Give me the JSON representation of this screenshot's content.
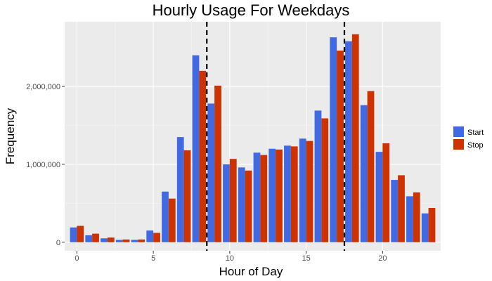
{
  "chart_data": {
    "type": "bar",
    "title": "Hourly Usage For Weekdays",
    "xlabel": "Hour of Day",
    "ylabel": "Frequency",
    "x": [
      0,
      1,
      2,
      3,
      4,
      5,
      6,
      7,
      8,
      9,
      10,
      11,
      12,
      13,
      14,
      15,
      16,
      17,
      18,
      19,
      20,
      21,
      22,
      23
    ],
    "series": [
      {
        "name": "Start",
        "color": "#4169E1",
        "values": [
          190000,
          90000,
          50000,
          30000,
          30000,
          150000,
          650000,
          1350000,
          2400000,
          1780000,
          1000000,
          960000,
          1150000,
          1200000,
          1240000,
          1330000,
          1690000,
          2630000,
          2580000,
          1760000,
          1160000,
          800000,
          590000,
          370000
        ]
      },
      {
        "name": "Stop",
        "color": "#CC3300",
        "values": [
          210000,
          110000,
          60000,
          35000,
          35000,
          120000,
          560000,
          1180000,
          2200000,
          2010000,
          1070000,
          920000,
          1120000,
          1190000,
          1230000,
          1300000,
          1590000,
          2460000,
          2670000,
          1940000,
          1270000,
          860000,
          640000,
          440000
        ]
      }
    ],
    "xlim": [
      -0.8,
      23.8
    ],
    "ylim": [
      -110000,
      2830000
    ],
    "x_ticks": [
      0,
      5,
      10,
      15,
      20
    ],
    "x_tick_labels": [
      "0",
      "5",
      "10",
      "15",
      "20"
    ],
    "y_ticks": [
      0,
      1000000,
      2000000
    ],
    "y_tick_labels": [
      "0",
      "1,000,000",
      "2,000,000"
    ],
    "reference_lines": [
      8.5,
      17.5
    ],
    "grid": true,
    "legend": "right"
  }
}
